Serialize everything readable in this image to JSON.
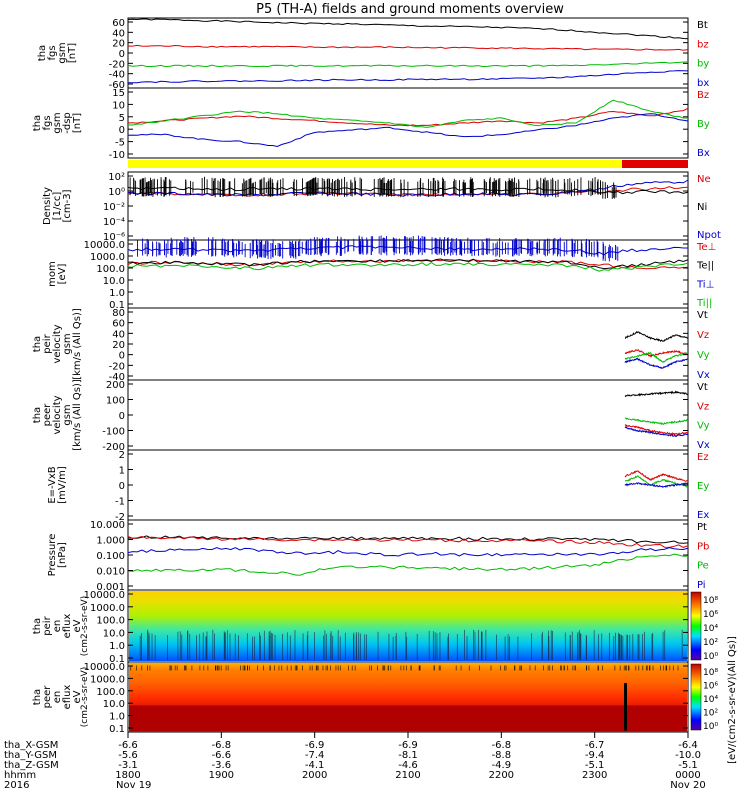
{
  "title": "P5 (TH-A) fields and ground moments overview",
  "chart_data": [
    {
      "type": "line",
      "ylabel": [
        "tha",
        "fgs",
        "gsm",
        "[nT]"
      ],
      "yticks": [
        "60",
        "40",
        "20",
        "0",
        "-20",
        "-40",
        "-60"
      ],
      "ylim": [
        -60,
        60
      ],
      "series": [
        {
          "name": "Bt",
          "color": "#000000",
          "values": [
            58,
            57,
            55,
            53,
            51,
            50,
            48,
            46,
            45,
            43,
            40,
            35,
            30,
            25
          ]
        },
        {
          "name": "bz",
          "color": "#dd0000",
          "values": [
            12,
            12,
            11,
            11,
            10,
            10,
            10,
            9,
            9,
            8,
            7,
            6,
            6,
            5
          ]
        },
        {
          "name": "by",
          "color": "#00bb00",
          "values": [
            -22,
            -22,
            -22,
            -22,
            -22,
            -22,
            -22,
            -22,
            -22,
            -22,
            -22,
            -20,
            -18,
            -15
          ]
        },
        {
          "name": "bx",
          "color": "#0000cc",
          "values": [
            -50,
            -49,
            -48,
            -48,
            -47,
            -46,
            -46,
            -45,
            -45,
            -44,
            -42,
            -38,
            -33,
            -30
          ]
        }
      ]
    },
    {
      "type": "line",
      "ylabel": [
        "tha",
        "fgs",
        "gsm",
        "-dsp",
        "[nT]"
      ],
      "yticks": [
        "15",
        "10",
        "5",
        "0",
        "-5",
        "-10"
      ],
      "ylim": [
        -15,
        15
      ],
      "series": [
        {
          "name": "Bz",
          "color": "#dd0000",
          "values": [
            0,
            1,
            2,
            3,
            2,
            1,
            0,
            -1,
            -1,
            0,
            1,
            0,
            2,
            5,
            3,
            6
          ]
        },
        {
          "name": "By",
          "color": "#00bb00",
          "values": [
            -1,
            1,
            3,
            5,
            4,
            2,
            1,
            0,
            -2,
            1,
            2,
            -1,
            0,
            10,
            5,
            2
          ]
        },
        {
          "name": "Bx",
          "color": "#0000cc",
          "values": [
            -5,
            -5,
            -7,
            -8,
            -10,
            -4,
            -3,
            -2,
            -4,
            -6,
            -5,
            -3,
            -1,
            2,
            4,
            1
          ]
        }
      ]
    },
    {
      "type": "line",
      "ylabel": [
        "Density",
        "[1/cc]",
        "[cm-3]"
      ],
      "yticks": [
        "10²",
        "10⁰",
        "10⁻²",
        "10⁻⁴",
        "10⁻⁶"
      ],
      "ylim": [
        -6,
        2
      ],
      "log": true,
      "series": [
        {
          "name": "Ne",
          "color": "#dd0000",
          "values": [
            0.3,
            0.3,
            0.2,
            0.2,
            0.3,
            0.3,
            0.2,
            0.2,
            0.3,
            0.2,
            0.3,
            0.5,
            1.0,
            2.0
          ]
        },
        {
          "name": "Ni",
          "color": "#000000",
          "values": [
            1.0,
            1.2,
            0.8,
            1.0,
            1.1,
            1.0,
            0.9,
            1.0,
            1.0,
            0.9,
            1.0,
            0.3,
            0.5,
            0.4
          ]
        },
        {
          "name": "Npot",
          "color": "#0000cc",
          "values": [
            0.3,
            0.3,
            0.2,
            0.2,
            0.3,
            0.3,
            0.2,
            0.2,
            0.3,
            0.2,
            0.3,
            1.0,
            5.0,
            8.0
          ]
        }
      ]
    },
    {
      "type": "line",
      "ylabel": [
        "mom",
        "[eV]"
      ],
      "yticks": [
        "10000.0",
        "1000.0",
        "100.0",
        "10.0",
        "1.0",
        "0.1"
      ],
      "ylim": [
        -1,
        4
      ],
      "log": true,
      "series": [
        {
          "name": "Te⊥",
          "color": "#dd0000",
          "values": [
            200,
            220,
            180,
            150,
            250,
            300,
            280,
            320,
            300,
            280,
            250,
            150,
            80,
            100
          ]
        },
        {
          "name": "Te||",
          "color": "#000000",
          "values": [
            200,
            220,
            180,
            150,
            250,
            300,
            280,
            320,
            300,
            280,
            250,
            80,
            150,
            300
          ]
        },
        {
          "name": "Ti⊥",
          "color": "#0000cc",
          "values": [
            2000,
            2200,
            1800,
            1500,
            2500,
            3000,
            2800,
            2500,
            2000,
            2200,
            2000,
            1000,
            2000,
            3000
          ]
        },
        {
          "name": "Ti||",
          "color": "#00bb00",
          "values": [
            120,
            130,
            100,
            80,
            140,
            160,
            150,
            170,
            160,
            150,
            140,
            60,
            100,
            200
          ]
        }
      ]
    },
    {
      "type": "line",
      "ylabel": [
        "tha",
        "peir",
        "velocity",
        "gsm",
        "[km/s (All Qs)]"
      ],
      "yticks": [
        "80",
        "60",
        "40",
        "20",
        "0",
        "-20",
        "-40"
      ],
      "ylim": [
        -40,
        80
      ],
      "series": [
        {
          "name": "Vt",
          "color": "#000000",
          "values": [
            30,
            40,
            30,
            25,
            35,
            30
          ]
        },
        {
          "name": "Vz",
          "color": "#dd0000",
          "values": [
            5,
            10,
            0,
            5,
            8,
            3
          ]
        },
        {
          "name": "Vy",
          "color": "#00bb00",
          "values": [
            -5,
            0,
            5,
            -10,
            0,
            5
          ]
        },
        {
          "name": "Vx",
          "color": "#0000cc",
          "values": [
            -10,
            -5,
            -15,
            -20,
            -10,
            -5
          ]
        }
      ]
    },
    {
      "type": "line",
      "ylabel": [
        "tha",
        "peer",
        "velocity",
        "gsm",
        "[km/s (All Qs)]"
      ],
      "yticks": [
        "200",
        "100",
        "0",
        "-100",
        "-200"
      ],
      "ylim": [
        -200,
        200
      ],
      "series": [
        {
          "name": "Vt",
          "color": "#000000",
          "values": [
            110,
            115,
            120,
            125,
            130,
            120
          ]
        },
        {
          "name": "Vz",
          "color": "#dd0000",
          "values": [
            -60,
            -70,
            -90,
            -100,
            -110,
            -100
          ]
        },
        {
          "name": "Vy",
          "color": "#00bb00",
          "values": [
            -20,
            -30,
            -40,
            -50,
            -40,
            -30
          ]
        },
        {
          "name": "Vx",
          "color": "#0000cc",
          "values": [
            -70,
            -90,
            -100,
            -110,
            -120,
            -110
          ]
        }
      ]
    },
    {
      "type": "line",
      "ylabel": [
        "E=-VxB",
        "[mV/m]"
      ],
      "yticks": [
        "2",
        "1",
        "0",
        "-1",
        "-2"
      ],
      "ylim": [
        -2,
        2
      ],
      "series": [
        {
          "name": "Ez",
          "color": "#dd0000",
          "values": [
            0.5,
            0.8,
            0.3,
            0.6,
            0.4,
            0.2
          ]
        },
        {
          "name": "Ey",
          "color": "#00bb00",
          "values": [
            0.2,
            0.5,
            0.0,
            0.3,
            0.1,
            -0.1
          ]
        },
        {
          "name": "Ex",
          "color": "#0000cc",
          "values": [
            0.0,
            0.1,
            0.0,
            -0.1,
            0.0,
            0.1
          ]
        }
      ]
    },
    {
      "type": "line",
      "ylabel": [
        "Pressure",
        "[nPa]"
      ],
      "yticks": [
        "10.000",
        "1.000",
        "0.100",
        "0.010",
        "0.001"
      ],
      "ylim": [
        -3,
        1
      ],
      "log": true,
      "series": [
        {
          "name": "Pt",
          "color": "#000000",
          "values": [
            1.1,
            1.0,
            0.95,
            0.9,
            0.88,
            0.9,
            0.9,
            0.88,
            0.85,
            0.85,
            0.8,
            0.75,
            0.55,
            0.5
          ]
        },
        {
          "name": "Pb",
          "color": "#dd0000",
          "values": [
            1.0,
            0.95,
            0.85,
            0.8,
            0.75,
            0.75,
            0.72,
            0.7,
            0.68,
            0.66,
            0.6,
            0.5,
            0.35,
            0.3
          ]
        },
        {
          "name": "Pe",
          "color": "#00bb00",
          "values": [
            0.012,
            0.014,
            0.015,
            0.012,
            0.008,
            0.02,
            0.02,
            0.018,
            0.016,
            0.015,
            0.02,
            0.03,
            0.08,
            0.1
          ]
        },
        {
          "name": "Pi",
          "color": "#0000cc",
          "values": [
            0.15,
            0.2,
            0.25,
            0.18,
            0.12,
            0.15,
            0.1,
            0.12,
            0.1,
            0.1,
            0.12,
            0.1,
            0.2,
            0.25
          ]
        }
      ]
    },
    {
      "type": "heatmap",
      "ylabel": [
        "tha",
        "peir",
        "en",
        "eflux",
        "eV"
      ],
      "ylabel_units": "(cm2-s-sr-eV)",
      "yticks": [
        "10000.0",
        "1000.0",
        "100.0",
        "10.0",
        "1.0",
        "0.1"
      ],
      "colorbar_label": "[eV/(cm2-s-sr-eV)(All Qs)]",
      "colorbar_ticks": [
        "10⁸",
        "10⁶",
        "10⁴",
        "10²",
        "10⁰"
      ]
    },
    {
      "type": "heatmap",
      "ylabel": [
        "tha",
        "peer",
        "en",
        "eflux",
        "eV"
      ],
      "ylabel_units": "(cm2-s-sr-eV)",
      "yticks": [
        "10000.0",
        "1000.0",
        "100.0",
        "10.0",
        "1.0",
        "0.1"
      ],
      "colorbar_label": "[eV/(cm2-s-sr-eV)(All Qs)]",
      "colorbar_ticks": [
        "10⁸",
        "10⁶",
        "10⁴",
        "10²",
        "10⁰"
      ]
    }
  ],
  "xaxis": {
    "rows": [
      {
        "label": "tha_X-GSM",
        "values": [
          "-6.6",
          "-6.8",
          "-6.9",
          "-6.9",
          "-6.8",
          "-6.7",
          "-6.4"
        ]
      },
      {
        "label": "tha_Y-GSM",
        "values": [
          "-5.6",
          "-6.6",
          "-7.4",
          "-8.1",
          "-8.8",
          "-9.4",
          "-10.0"
        ]
      },
      {
        "label": "tha_Z-GSM",
        "values": [
          "-3.1",
          "-3.6",
          "-4.1",
          "-4.6",
          "-4.9",
          "-5.1",
          "-5.1"
        ]
      },
      {
        "label": "hhmm",
        "values": [
          "1800",
          "1900",
          "2000",
          "2100",
          "2200",
          "2300",
          "0000"
        ]
      },
      {
        "label": "2016",
        "values": [
          "Nov 19",
          "",
          "",
          "",
          "",
          "",
          "Nov 20"
        ]
      }
    ]
  }
}
